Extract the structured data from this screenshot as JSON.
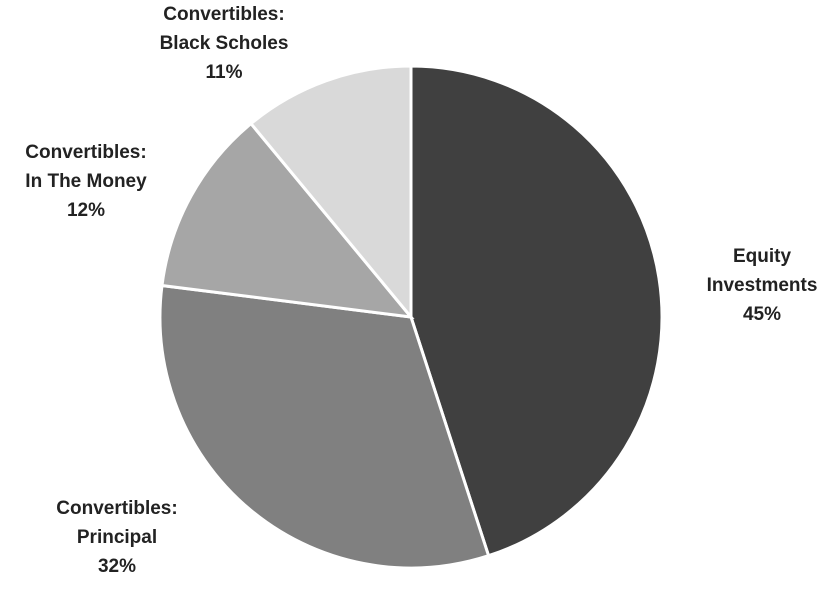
{
  "chart_data": {
    "type": "pie",
    "title": "",
    "start_angle_deg": 0,
    "direction": "clockwise",
    "slices": [
      {
        "label_lines": [
          "Equity",
          "Investments"
        ],
        "value": 45,
        "value_label": "45%",
        "color": "#404040"
      },
      {
        "label_lines": [
          "Convertibles:",
          "Principal"
        ],
        "value": 32,
        "value_label": "32%",
        "color": "#808080"
      },
      {
        "label_lines": [
          "Convertibles:",
          "In The Money"
        ],
        "value": 12,
        "value_label": "12%",
        "color": "#a6a6a6"
      },
      {
        "label_lines": [
          "Convertibles:",
          "Black Scholes"
        ],
        "value": 11,
        "value_label": "11%",
        "color": "#d9d9d9"
      }
    ],
    "legend": "none",
    "label_position": "outside"
  }
}
